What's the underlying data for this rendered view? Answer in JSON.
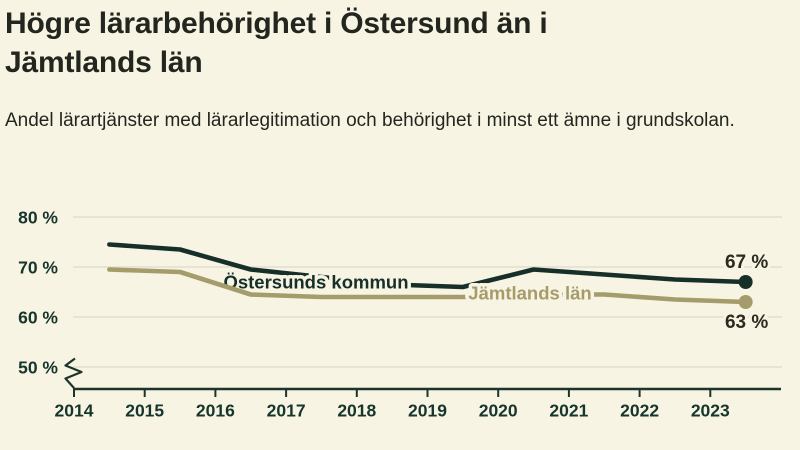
{
  "page": {
    "background_color": "#f8f4e3"
  },
  "header": {
    "title": "Högre lärarbehörighet i Östersund än i Jämtlands län",
    "subtitle": "Andel lärartjänster med lärarlegitimation och behörighet i minst ett ämne i grundskolan."
  },
  "chart_data": {
    "type": "line",
    "title": "Högre lärarbehörighet i Östersund än i Jämtlands län",
    "subtitle": "Andel lärartjänster med lärarlegitimation och behörighet i minst ett ämne i grundskolan.",
    "x": [
      2014.5,
      2015.5,
      2016.5,
      2017.5,
      2018.5,
      2019.5,
      2020.5,
      2021.5,
      2022.5,
      2023.5
    ],
    "series": [
      {
        "name": "Östersunds kommun",
        "color": "#163029",
        "values": [
          74.5,
          73.5,
          69.5,
          68,
          66.5,
          66,
          69.5,
          68.5,
          67.5,
          67
        ],
        "end_label": "67 %"
      },
      {
        "name": "Jämtlands län",
        "color": "#a49c6a",
        "values": [
          69.5,
          69,
          64.5,
          64,
          64,
          64,
          64.5,
          64.5,
          63.5,
          63
        ],
        "end_label": "63 %"
      }
    ],
    "xticks": [
      "2014",
      "2015",
      "2016",
      "2017",
      "2018",
      "2019",
      "2020",
      "2021",
      "2022",
      "2023"
    ],
    "yticks": [
      {
        "label": "80 %",
        "value": 80
      },
      {
        "label": "70 %",
        "value": 70
      },
      {
        "label": "60 %",
        "value": 60
      },
      {
        "label": "50 %",
        "value": 50
      }
    ],
    "ylim": [
      50,
      82
    ],
    "unit": "%",
    "grid": true,
    "axis_break": true,
    "legend_position": "inline-labels",
    "gridline_color": "#e6e2d3",
    "axis_color": "#1d342c"
  }
}
